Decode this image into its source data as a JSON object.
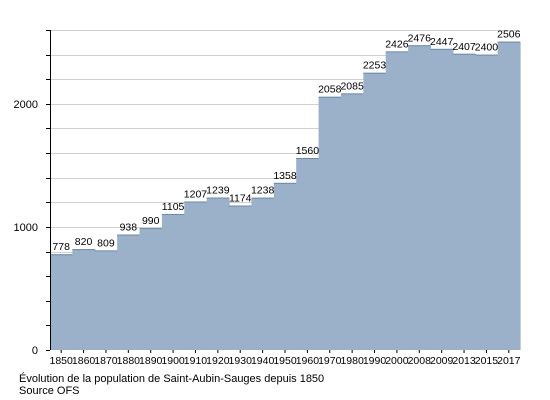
{
  "chart_data": {
    "type": "bar",
    "categories": [
      "1850",
      "1860",
      "1870",
      "1880",
      "1890",
      "1900",
      "1910",
      "1920",
      "1930",
      "1940",
      "1950",
      "1960",
      "1970",
      "1980",
      "1990",
      "2000",
      "2008",
      "2009",
      "2013",
      "2015",
      "2017"
    ],
    "values": [
      778,
      820,
      809,
      938,
      990,
      1105,
      1207,
      1239,
      1174,
      1238,
      1358,
      1560,
      2058,
      2085,
      2253,
      2426,
      2476,
      2447,
      2407,
      2400,
      2506
    ],
    "ylim": [
      0,
      2600
    ],
    "yticks": [
      0,
      1000,
      2000
    ],
    "minor_ytick_step": 200,
    "grid": true,
    "bar_color": "#9ab1c9",
    "grid_color": "#d0d0d0"
  },
  "caption": {
    "line1": "Évolution de la population de Saint-Aubin-Sauges depuis 1850",
    "line2": "Source OFS"
  }
}
